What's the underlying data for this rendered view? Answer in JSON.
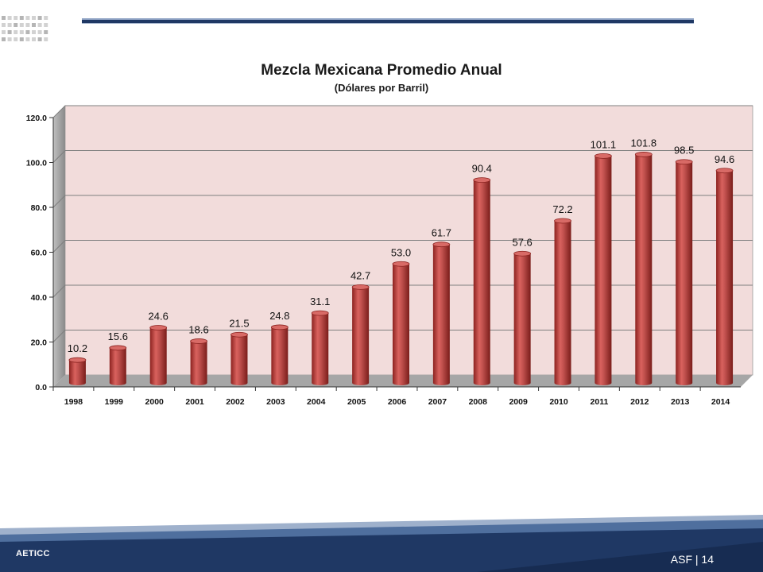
{
  "chart_data": {
    "type": "bar",
    "title": "Mezcla Mexicana Promedio Anual",
    "subtitle": "(Dólares por Barril)",
    "xlabel": "",
    "ylabel": "",
    "ylim": [
      0,
      120
    ],
    "yticks": [
      "0.0",
      "20.0",
      "40.0",
      "60.0",
      "80.0",
      "100.0",
      "120.0"
    ],
    "categories": [
      "1998",
      "1999",
      "2000",
      "2001",
      "2002",
      "2003",
      "2004",
      "2005",
      "2006",
      "2007",
      "2008",
      "2009",
      "2010",
      "2011",
      "2012",
      "2013",
      "2014"
    ],
    "values": [
      10.2,
      15.6,
      24.6,
      18.6,
      21.5,
      24.8,
      31.1,
      42.7,
      53.0,
      61.7,
      90.4,
      57.6,
      72.2,
      101.1,
      101.8,
      98.5,
      94.6
    ],
    "data_labels": [
      "10.2",
      "15.6",
      "24.6",
      "18.6",
      "21.5",
      "24.8",
      "31.1",
      "42.7",
      "53.0",
      "61.7",
      "90.4",
      "57.6",
      "72.2",
      "101.1",
      "101.8",
      "98.5",
      "94.6"
    ],
    "grid": true,
    "legend": "none",
    "colors": {
      "bar": "#c0504d",
      "plot_background": "#f2dcdb",
      "gridline": "#7f7f7f"
    }
  },
  "footer": {
    "org": "AETICC",
    "page_label": "ASF | 14"
  },
  "colors": {
    "brand_dark": "#1f3864",
    "brand_mid": "#4f6f9e"
  }
}
